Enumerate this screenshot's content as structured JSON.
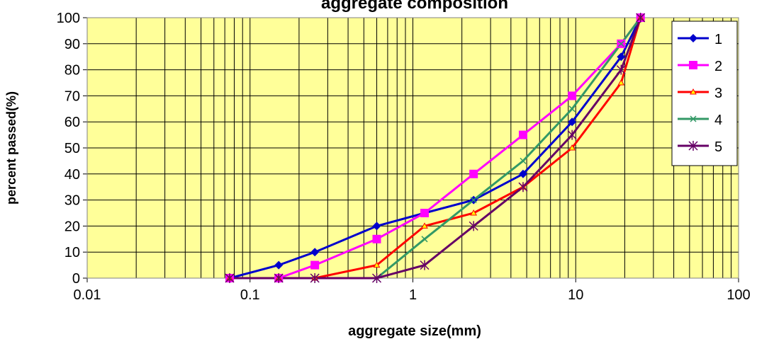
{
  "chart_data": {
    "type": "line",
    "title": "aggregate composition",
    "x_label": "aggregate size(mm)",
    "y_label": "percent passed(%)",
    "x": [
      0.075,
      0.15,
      0.25,
      0.6,
      1.18,
      2.36,
      4.75,
      9.5,
      19,
      25
    ],
    "series": [
      {
        "name": "1",
        "color": "#0000cc",
        "marker": "diamond",
        "values": [
          0,
          5,
          10,
          20,
          25,
          30,
          40,
          60,
          85,
          100
        ]
      },
      {
        "name": "2",
        "color": "#ff00ff",
        "marker": "square",
        "values": [
          0,
          0,
          5,
          15,
          25,
          40,
          55,
          70,
          90,
          100
        ]
      },
      {
        "name": "3",
        "color": "#ff0000",
        "marker": "triangle",
        "values": [
          0,
          0,
          0,
          5,
          20,
          25,
          35,
          50,
          75,
          100
        ]
      },
      {
        "name": "4",
        "color": "#339966",
        "marker": "x",
        "values": [
          0,
          0,
          0,
          0,
          15,
          30,
          45,
          65,
          90,
          100
        ]
      },
      {
        "name": "5",
        "color": "#660066",
        "marker": "star",
        "values": [
          0,
          0,
          0,
          0,
          5,
          20,
          35,
          55,
          80,
          100
        ]
      }
    ],
    "xlim": [
      0.01,
      100
    ],
    "xticks": [
      0.01,
      0.1,
      1,
      10,
      100
    ],
    "x_log": true,
    "ylim": [
      0,
      100
    ],
    "yticks": [
      0,
      10,
      20,
      30,
      40,
      50,
      60,
      70,
      80,
      90,
      100
    ],
    "grid": true,
    "legend": "upper right",
    "background": "#ffff99"
  }
}
